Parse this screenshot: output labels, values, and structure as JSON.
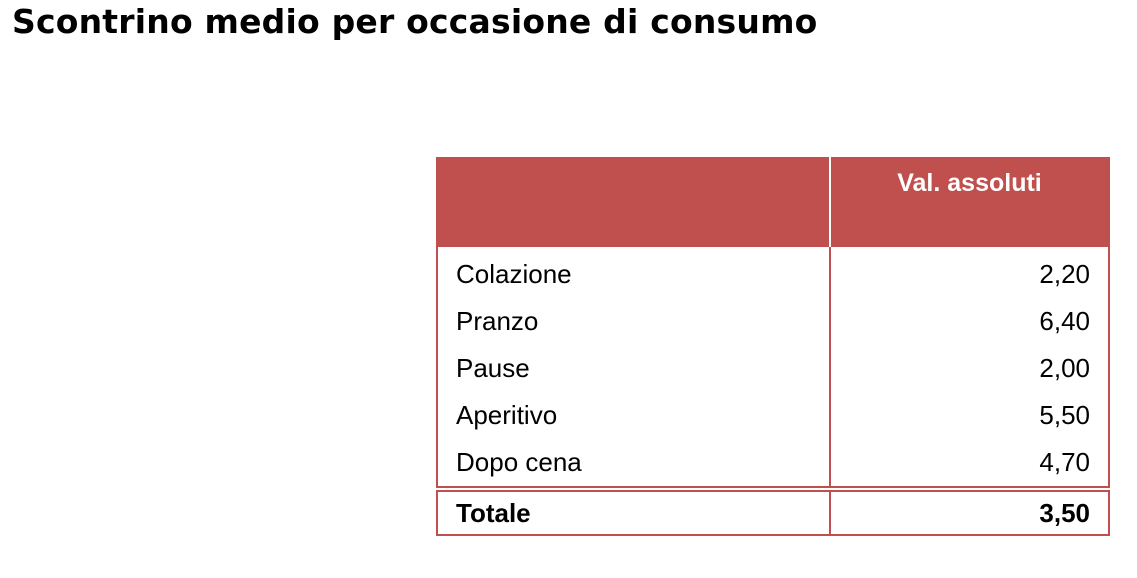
{
  "title": "Scontrino medio per occasione di consumo",
  "table": {
    "header": {
      "label_col": "",
      "value_col": "Val. assoluti"
    },
    "rows": [
      {
        "label": "Colazione",
        "value": "2,20"
      },
      {
        "label": "Pranzo",
        "value": "6,40"
      },
      {
        "label": "Pause",
        "value": "2,00"
      },
      {
        "label": "Aperitivo",
        "value": "5,50"
      },
      {
        "label": "Dopo cena",
        "value": "4,70"
      }
    ],
    "total": {
      "label": "Totale",
      "value": "3,50"
    }
  },
  "colors": {
    "accent": "#c0504d",
    "header_text": "#ffffff"
  }
}
